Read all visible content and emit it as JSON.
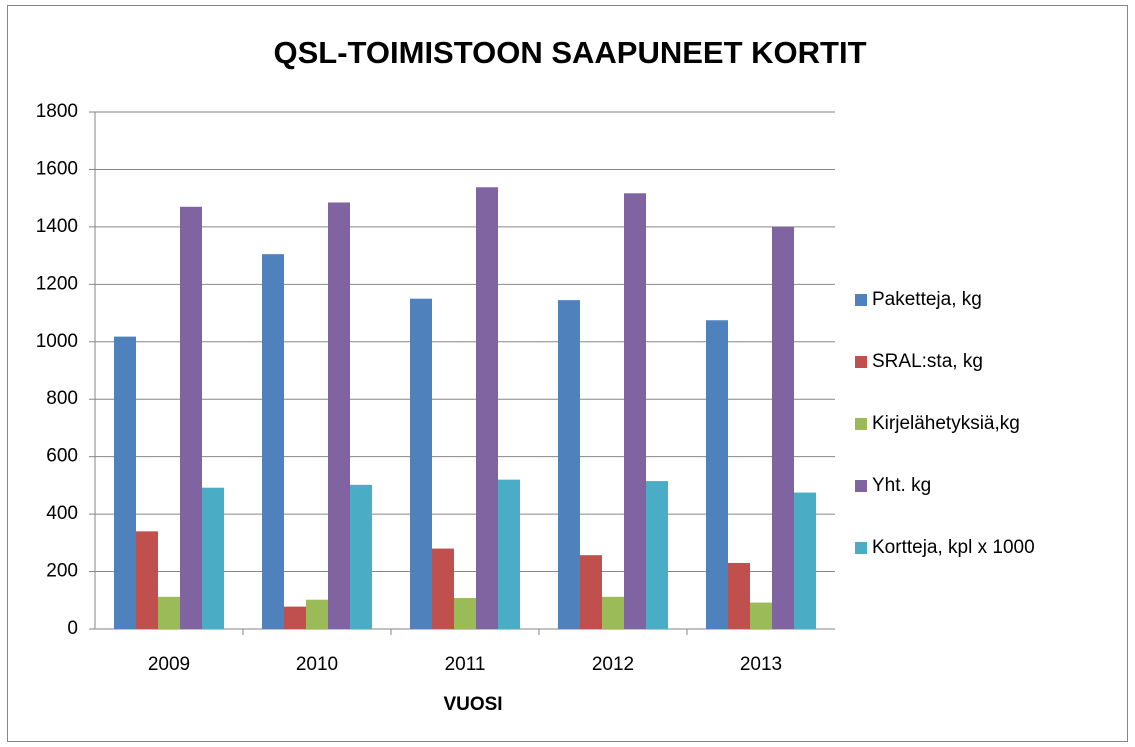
{
  "chart_data": {
    "type": "bar",
    "title": "QSL-TOIMISTOON SAAPUNEET KORTIT",
    "x_label": "VUOSI",
    "categories": [
      "2009",
      "2010",
      "2011",
      "2012",
      "2013"
    ],
    "series": [
      {
        "name": "Paketteja, kg",
        "color": "#4f81bd",
        "values": [
          1018,
          1305,
          1150,
          1145,
          1075
        ]
      },
      {
        "name": "SRAL:sta, kg",
        "color": "#c0504d",
        "values": [
          340,
          78,
          280,
          257,
          230
        ]
      },
      {
        "name": "Kirjelähetyksiä,kg",
        "color": "#9bbb59",
        "values": [
          112,
          102,
          108,
          112,
          92
        ]
      },
      {
        "name": "Yht. kg",
        "color": "#8064a2",
        "values": [
          1470,
          1485,
          1538,
          1517,
          1400
        ]
      },
      {
        "name": "Kortteja, kpl x 1000",
        "color": "#4bacc6",
        "values": [
          492,
          502,
          520,
          515,
          475
        ]
      }
    ],
    "ylim": [
      0,
      1800
    ],
    "yticks": [
      0,
      200,
      400,
      600,
      800,
      1000,
      1200,
      1400,
      1600,
      1800
    ],
    "grid": true,
    "legend": "right"
  }
}
